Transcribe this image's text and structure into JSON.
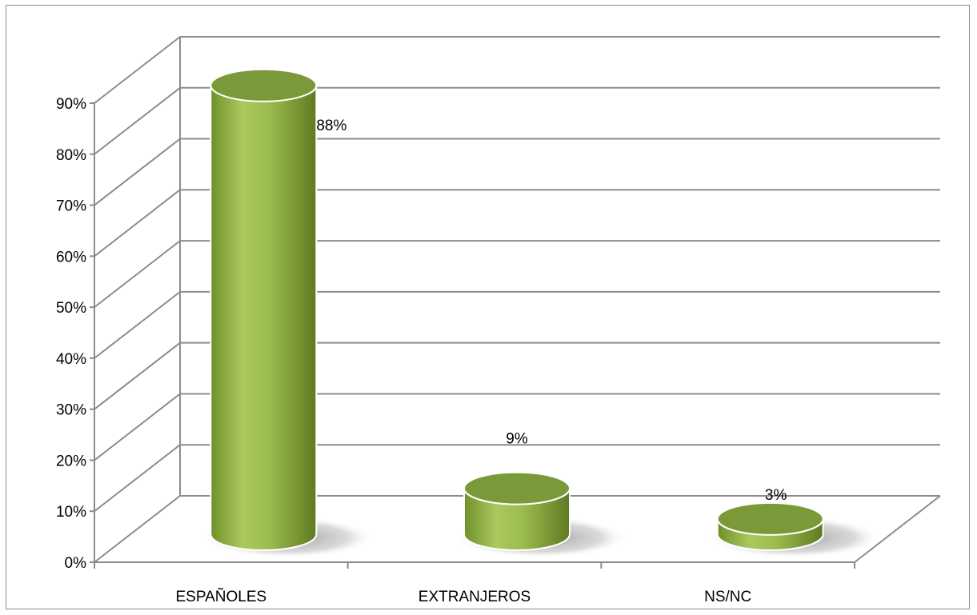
{
  "chart_data": {
    "type": "bar",
    "style": "3d-cylinder",
    "categories": [
      "ESPAÑOLES",
      "EXTRANJEROS",
      "NS/NC"
    ],
    "values": [
      88,
      9,
      3
    ],
    "data_labels": [
      "88%",
      "9%",
      "3%"
    ],
    "ylim": [
      0,
      90
    ],
    "y_ticks": [
      "0%",
      "10%",
      "20%",
      "30%",
      "40%",
      "50%",
      "60%",
      "70%",
      "80%",
      "90%"
    ],
    "title": "",
    "xlabel": "",
    "ylabel": "",
    "grid": true,
    "legend": "none",
    "colors": {
      "bar_light": "#a9c95e",
      "bar_mid": "#8fb043",
      "bar_dark": "#5f7a22",
      "bar_top": "#7a9a3a",
      "grid": "#8c8c8c",
      "shadow": "#999999"
    }
  }
}
